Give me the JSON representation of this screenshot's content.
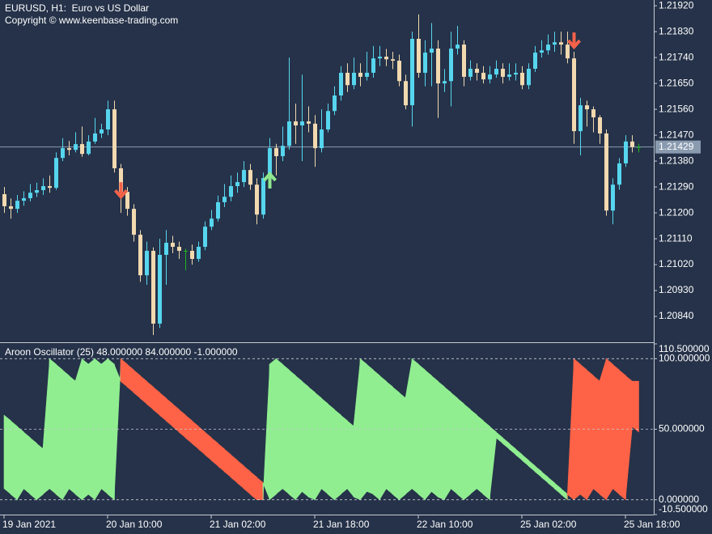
{
  "chart_data": [
    {
      "type": "candlestick",
      "title": "EURUSD, H1:  Euro vs US Dollar",
      "subtitle": "Copyright © www.keenbase-trading.com",
      "categories": [
        "19 Jan 2021",
        null,
        null,
        null,
        null,
        null,
        null,
        null,
        null,
        null,
        null,
        null,
        null,
        null,
        null,
        null,
        "20 Jan 10:00",
        null,
        null,
        null,
        null,
        null,
        null,
        null,
        null,
        null,
        null,
        null,
        null,
        null,
        null,
        null,
        "21 Jan 02:00",
        null,
        null,
        null,
        null,
        null,
        null,
        null,
        null,
        null,
        null,
        null,
        null,
        null,
        null,
        null,
        "21 Jan 18:00",
        null,
        null,
        null,
        null,
        null,
        null,
        null,
        null,
        null,
        null,
        null,
        null,
        null,
        null,
        null,
        "22 Jan 10:00",
        null,
        null,
        null,
        null,
        null,
        null,
        null,
        null,
        null,
        null,
        null,
        null,
        null,
        null,
        null,
        "25 Jan 02:00",
        null,
        null,
        null,
        null,
        null,
        null,
        null,
        null,
        null,
        null,
        null,
        null,
        null,
        null,
        null,
        "25 Jan 18:00",
        null,
        null
      ],
      "open": [
        1.21265,
        1.21223,
        1.21214,
        1.21242,
        1.21251,
        1.2127,
        1.21279,
        1.21293,
        1.21287,
        1.21391,
        1.21425,
        1.21419,
        1.21439,
        1.21405,
        1.21448,
        1.21476,
        1.2149,
        1.2156,
        1.21355,
        1.21273,
        1.21214,
        1.21124,
        1.20983,
        1.21068,
        1.20815,
        1.21054,
        1.21096,
        1.21082,
        1.21068,
        1.21068,
        1.2104,
        1.21082,
        1.21152,
        1.2118,
        1.21237,
        1.21256,
        1.21293,
        1.21307,
        1.21349,
        1.21298,
        1.21194,
        1.21321,
        1.21425,
        1.21397,
        1.21433,
        1.21518,
        1.21504,
        1.21518,
        1.2151,
        1.21425,
        1.2149,
        1.21554,
        1.21608,
        1.21687,
        1.21644,
        1.21687,
        1.21673,
        1.21687,
        1.21737,
        1.21743,
        1.21734,
        1.21729,
        1.21658,
        1.21574,
        1.21805,
        1.21687,
        1.21757,
        1.21771,
        1.2165,
        1.21658,
        1.21771,
        1.21785,
        1.21673,
        1.21701,
        1.21687,
        1.21664,
        1.21681,
        1.21701,
        1.21673,
        1.21681,
        1.21687,
        1.21644,
        1.21701,
        1.21757,
        1.21765,
        1.21785,
        1.21793,
        1.21785,
        1.21737,
        1.21484,
        1.21574,
        1.2156,
        1.21532,
        1.21476,
        1.21208,
        1.21298,
        1.21372,
        1.21448,
        1.21429
      ],
      "high": [
        1.2129,
        1.2125,
        1.21262,
        1.21275,
        1.213,
        1.21305,
        1.2132,
        1.2133,
        1.2141,
        1.2146,
        1.2145,
        1.2148,
        1.215,
        1.2147,
        1.2153,
        1.2151,
        1.2159,
        1.2159,
        1.2137,
        1.2129,
        1.2123,
        1.2114,
        1.211,
        1.2108,
        1.2111,
        1.2114,
        1.2112,
        1.211,
        1.21075,
        1.2109,
        1.211,
        1.2117,
        1.2121,
        1.2126,
        1.213,
        1.2133,
        1.2134,
        1.2138,
        1.2137,
        1.2132,
        1.2134,
        1.2146,
        1.2144,
        1.215,
        1.2174,
        1.2158,
        1.2168,
        1.2157,
        1.2154,
        1.2156,
        1.2158,
        1.2164,
        1.2171,
        1.2172,
        1.2174,
        1.2172,
        1.2176,
        1.2178,
        1.2178,
        1.2177,
        1.2176,
        1.2175,
        1.2168,
        1.2183,
        1.2189,
        1.218,
        1.2186,
        1.218,
        1.217,
        1.2183,
        1.2185,
        1.218,
        1.2173,
        1.2172,
        1.2171,
        1.2171,
        1.2173,
        1.2172,
        1.2172,
        1.2172,
        1.2171,
        1.2172,
        1.2178,
        1.218,
        1.2182,
        1.2183,
        1.2183,
        1.2183,
        1.2176,
        1.216,
        1.2159,
        1.2157,
        1.2154,
        1.2149,
        1.2132,
        1.2139,
        1.2147,
        1.2147,
        1.2144
      ],
      "low": [
        1.212,
        1.2118,
        1.212,
        1.21225,
        1.2124,
        1.21255,
        1.21262,
        1.2127,
        1.2128,
        1.2138,
        1.214,
        1.2141,
        1.21395,
        1.214,
        1.2144,
        1.2146,
        1.2147,
        1.2134,
        1.212,
        1.2119,
        1.211,
        1.2096,
        1.2095,
        1.20775,
        1.208,
        1.2095,
        1.2106,
        1.2104,
        1.21,
        1.2102,
        1.2103,
        1.2107,
        1.2114,
        1.2117,
        1.2122,
        1.2124,
        1.2127,
        1.2129,
        1.2128,
        1.2116,
        1.2118,
        1.2131,
        1.2133,
        1.2138,
        1.2142,
        1.2144,
        1.2138,
        1.2148,
        1.2136,
        1.2141,
        1.2148,
        1.2154,
        1.2159,
        1.2162,
        1.2163,
        1.2164,
        1.2166,
        1.2167,
        1.2171,
        1.2171,
        1.217,
        1.2164,
        1.2156,
        1.215,
        1.2167,
        1.2164,
        1.2164,
        1.2153,
        1.2162,
        1.2157,
        1.2175,
        1.2164,
        1.2166,
        1.2166,
        1.2165,
        1.2165,
        1.2167,
        1.2165,
        1.2166,
        1.2166,
        1.2163,
        1.2163,
        1.2169,
        1.2174,
        1.2175,
        1.2176,
        1.2175,
        1.2172,
        1.2144,
        1.214,
        1.215,
        1.2148,
        1.2144,
        1.2119,
        1.2116,
        1.2128,
        1.2136,
        1.2141,
        1.2141
      ],
      "close": [
        1.21223,
        1.21214,
        1.21242,
        1.21251,
        1.2127,
        1.21279,
        1.21293,
        1.21287,
        1.21391,
        1.21425,
        1.21419,
        1.21439,
        1.21405,
        1.21448,
        1.21476,
        1.2149,
        1.2156,
        1.21355,
        1.21273,
        1.21214,
        1.21124,
        1.20983,
        1.21068,
        1.20815,
        1.21054,
        1.21096,
        1.21082,
        1.21068,
        1.21068,
        1.2104,
        1.21082,
        1.21152,
        1.2118,
        1.21237,
        1.21256,
        1.21293,
        1.21307,
        1.21349,
        1.21298,
        1.21194,
        1.21321,
        1.21425,
        1.21397,
        1.21433,
        1.21518,
        1.21504,
        1.21518,
        1.2151,
        1.21425,
        1.2149,
        1.21554,
        1.21608,
        1.21687,
        1.21644,
        1.21687,
        1.21673,
        1.21687,
        1.21737,
        1.21743,
        1.21734,
        1.21729,
        1.21658,
        1.21574,
        1.21805,
        1.21687,
        1.21757,
        1.21771,
        1.2165,
        1.21658,
        1.21771,
        1.21785,
        1.21673,
        1.21701,
        1.21687,
        1.21664,
        1.21681,
        1.21701,
        1.21673,
        1.21681,
        1.21687,
        1.21644,
        1.21701,
        1.21757,
        1.21765,
        1.21785,
        1.21793,
        1.21785,
        1.21737,
        1.21484,
        1.21574,
        1.2156,
        1.21532,
        1.21476,
        1.21208,
        1.21298,
        1.21372,
        1.21448,
        1.21429,
        1.21429
      ],
      "bull_color": "#56d6ee",
      "bear_color": "#f2d9b0",
      "doji_color": "#1fb51f",
      "ylim": [
        1.20753,
        1.2194
      ],
      "yticks": [
        {
          "value": 1.2192,
          "label": "1.21920"
        },
        {
          "value": 1.2183,
          "label": "1.21830"
        },
        {
          "value": 1.2174,
          "label": "1.21740"
        },
        {
          "value": 1.2165,
          "label": "1.21650"
        },
        {
          "value": 1.2156,
          "label": "1.21560"
        },
        {
          "value": 1.2147,
          "label": "1.21470"
        },
        {
          "value": 1.2138,
          "label": "1.21380"
        },
        {
          "value": 1.2129,
          "label": "1.21290"
        },
        {
          "value": 1.212,
          "label": "1.21200"
        },
        {
          "value": 1.2111,
          "label": "1.21110"
        },
        {
          "value": 1.2102,
          "label": "1.21020"
        },
        {
          "value": 1.2093,
          "label": "1.20930"
        },
        {
          "value": 1.2084,
          "label": "1.20840"
        }
      ],
      "last_price": 1.21429,
      "last_price_color": "#8a9bb0",
      "signals": [
        {
          "bar": 18,
          "price": 1.2125,
          "direction": "down",
          "color": "#f4624a"
        },
        {
          "bar": 41,
          "price": 1.21341,
          "direction": "up",
          "color": "#8fe88f"
        },
        {
          "bar": 88,
          "price": 1.21771,
          "direction": "down",
          "color": "#f4624a"
        }
      ]
    },
    {
      "type": "aroon",
      "title": "Aroon Oscillator (25) 48.000000 84.000000 -1.000000",
      "series": [
        {
          "color": "#90ee90",
          "values": [
            60,
            56,
            52,
            48,
            44,
            40,
            36,
            100,
            96,
            92,
            88,
            84,
            100,
            96,
            100,
            96,
            100,
            96,
            84,
            80,
            76,
            72,
            68,
            64,
            60,
            56,
            52,
            48,
            44,
            40,
            36,
            32,
            28,
            24,
            20,
            16,
            12,
            8,
            4,
            0,
            0,
            96,
            100,
            96,
            92,
            88,
            84,
            80,
            76,
            72,
            68,
            64,
            60,
            56,
            52,
            100,
            96,
            92,
            88,
            84,
            80,
            76,
            72,
            100,
            96,
            92,
            88,
            84,
            80,
            76,
            72,
            68,
            64,
            60,
            56,
            52,
            48,
            44,
            40,
            36,
            32,
            28,
            24,
            20,
            16,
            12,
            8,
            4,
            0,
            4,
            0,
            8,
            4,
            0,
            8,
            4,
            0,
            52,
            48
          ]
        },
        {
          "color": "#ff6347",
          "values": [
            8,
            4,
            0,
            8,
            4,
            0,
            4,
            8,
            4,
            0,
            8,
            4,
            0,
            4,
            0,
            8,
            4,
            0,
            100,
            96,
            92,
            88,
            84,
            80,
            76,
            72,
            68,
            64,
            60,
            56,
            52,
            48,
            44,
            40,
            36,
            32,
            28,
            24,
            20,
            16,
            12,
            0,
            4,
            8,
            4,
            0,
            6,
            2,
            0,
            8,
            4,
            0,
            4,
            8,
            2,
            0,
            6,
            4,
            0,
            8,
            4,
            0,
            4,
            8,
            4,
            0,
            6,
            2,
            0,
            8,
            4,
            0,
            4,
            8,
            4,
            0,
            44,
            40,
            36,
            32,
            28,
            24,
            20,
            16,
            12,
            8,
            4,
            0,
            100,
            96,
            92,
            88,
            84,
            100,
            96,
            92,
            88,
            84,
            84
          ]
        }
      ],
      "ylim": [
        -10.5,
        110.5
      ],
      "yticks": [
        {
          "value": 110.5,
          "label": "110.500000"
        },
        {
          "value": 100,
          "label": "100.000000"
        },
        {
          "value": 50,
          "label": "50.000000"
        },
        {
          "value": 0,
          "label": "0.000000"
        },
        {
          "value": -10.5,
          "label": "-10.500000"
        }
      ]
    }
  ]
}
